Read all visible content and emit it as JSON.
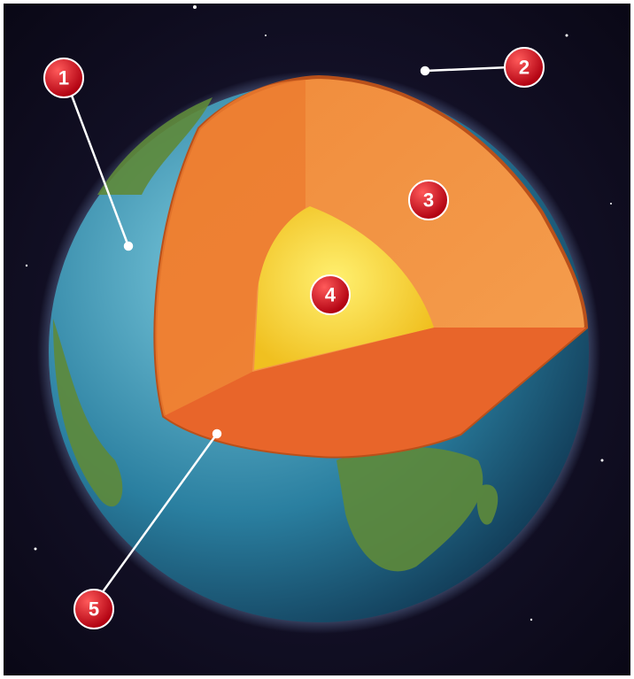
{
  "markers": [
    {
      "label": "1"
    },
    {
      "label": "2"
    },
    {
      "label": "3"
    },
    {
      "label": "4"
    },
    {
      "label": "5"
    }
  ]
}
